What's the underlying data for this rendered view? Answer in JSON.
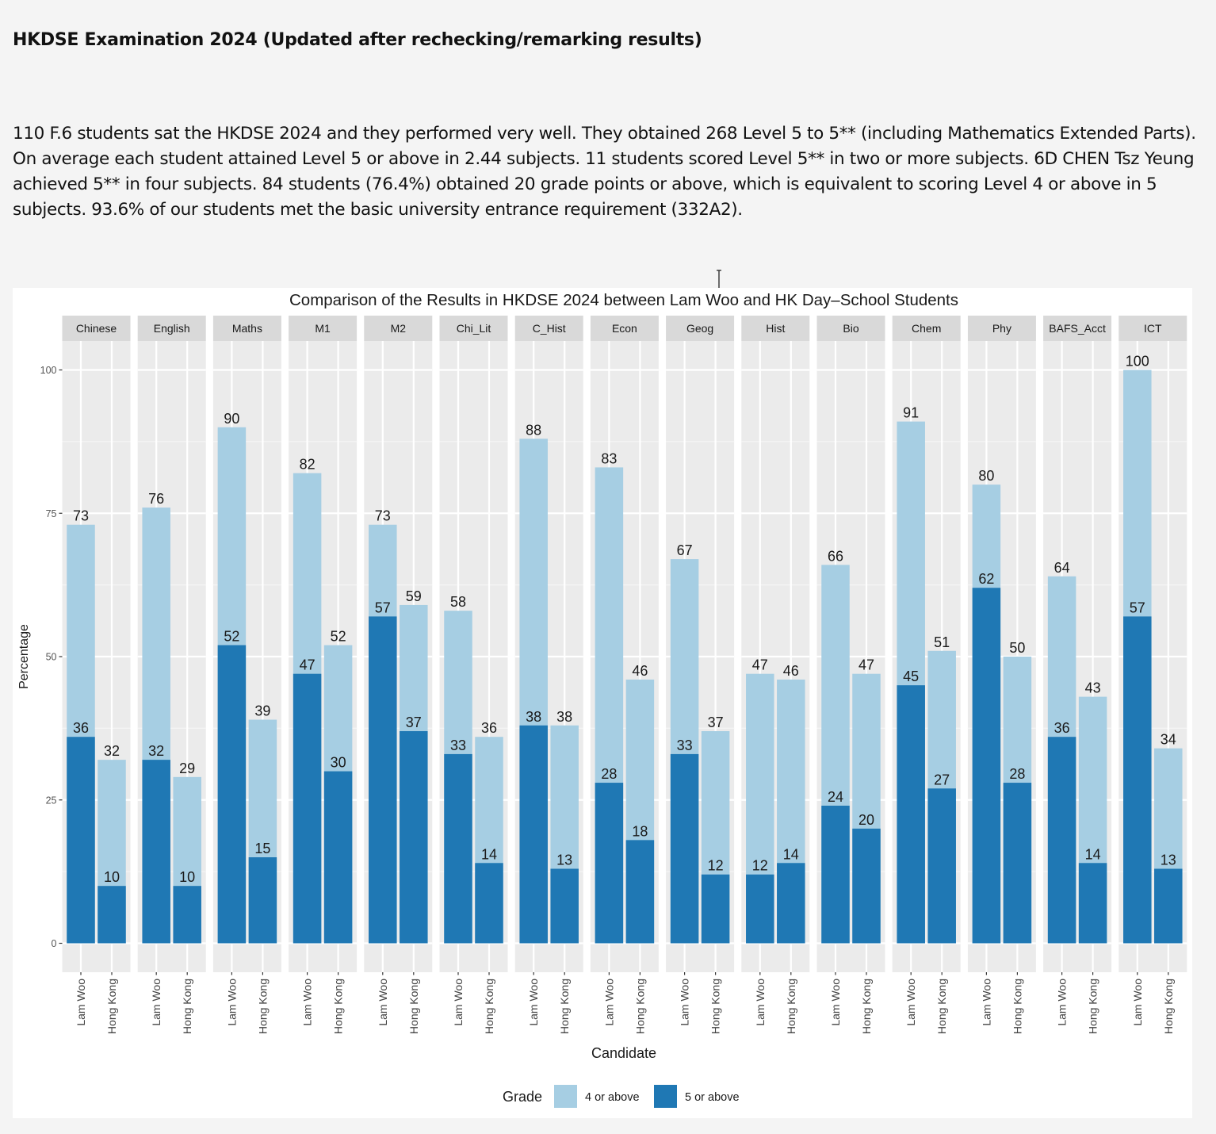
{
  "page": {
    "heading": "HKDSE Examination 2024 (Updated after rechecking/remarking results)",
    "intro": "110 F.6 students sat the HKDSE 2024 and they performed very well. They obtained 268 Level 5 to 5** (including Mathematics Extended Parts). On average each student attained Level 5 or above in 2.44 subjects. 11 students scored Level 5** in two or more subjects. 6D CHEN Tsz Yeung achieved 5** in four subjects. 84 students (76.4%) obtained 20 grade points or above, which is equivalent to scoring Level 4 or above in 5 subjects. 93.6% of our students met the basic university entrance requirement (332A2)."
  },
  "chart_data": {
    "type": "bar",
    "layout": "faceted-grouped-overlaid",
    "title": "Comparison of the Results in HKDSE 2024 between Lam Woo and HK Day–School Students",
    "xlabel": "Candidate",
    "ylabel": "Percentage",
    "ylim": [
      0,
      100
    ],
    "yticks": [
      0,
      25,
      50,
      75,
      100
    ],
    "grid": true,
    "legend": {
      "title": "Grade",
      "position": "bottom",
      "entries": [
        {
          "key": "four_or_above",
          "label": "4 or above",
          "color": "#a6cee3"
        },
        {
          "key": "five_or_above",
          "label": "5 or above",
          "color": "#1f78b4"
        }
      ]
    },
    "candidates": [
      "Lam Woo",
      "Hong Kong"
    ],
    "facets": [
      {
        "subject": "Chinese",
        "values": [
          {
            "four_or_above": 73,
            "five_or_above": 36
          },
          {
            "four_or_above": 32,
            "five_or_above": 10
          }
        ]
      },
      {
        "subject": "English",
        "values": [
          {
            "four_or_above": 76,
            "five_or_above": 32
          },
          {
            "four_or_above": 29,
            "five_or_above": 10
          }
        ]
      },
      {
        "subject": "Maths",
        "values": [
          {
            "four_or_above": 90,
            "five_or_above": 52
          },
          {
            "four_or_above": 39,
            "five_or_above": 15
          }
        ]
      },
      {
        "subject": "M1",
        "values": [
          {
            "four_or_above": 82,
            "five_or_above": 47
          },
          {
            "four_or_above": 52,
            "five_or_above": 30
          }
        ]
      },
      {
        "subject": "M2",
        "values": [
          {
            "four_or_above": 73,
            "five_or_above": 57
          },
          {
            "four_or_above": 59,
            "five_or_above": 37
          }
        ]
      },
      {
        "subject": "Chi_Lit",
        "values": [
          {
            "four_or_above": 58,
            "five_or_above": 33
          },
          {
            "four_or_above": 36,
            "five_or_above": 14
          }
        ]
      },
      {
        "subject": "C_Hist",
        "values": [
          {
            "four_or_above": 88,
            "five_or_above": 38
          },
          {
            "four_or_above": 38,
            "five_or_above": 13
          }
        ]
      },
      {
        "subject": "Econ",
        "values": [
          {
            "four_or_above": 83,
            "five_or_above": 28
          },
          {
            "four_or_above": 46,
            "five_or_above": 18
          }
        ]
      },
      {
        "subject": "Geog",
        "values": [
          {
            "four_or_above": 67,
            "five_or_above": 33
          },
          {
            "four_or_above": 37,
            "five_or_above": 12
          }
        ]
      },
      {
        "subject": "Hist",
        "values": [
          {
            "four_or_above": 47,
            "five_or_above": 12
          },
          {
            "four_or_above": 46,
            "five_or_above": 14
          }
        ]
      },
      {
        "subject": "Bio",
        "values": [
          {
            "four_or_above": 66,
            "five_or_above": 24
          },
          {
            "four_or_above": 47,
            "five_or_above": 20
          }
        ]
      },
      {
        "subject": "Chem",
        "values": [
          {
            "four_or_above": 91,
            "five_or_above": 45
          },
          {
            "four_or_above": 51,
            "five_or_above": 27
          }
        ]
      },
      {
        "subject": "Phy",
        "values": [
          {
            "four_or_above": 80,
            "five_or_above": 62
          },
          {
            "four_or_above": 50,
            "five_or_above": 28
          }
        ]
      },
      {
        "subject": "BAFS_Acct",
        "values": [
          {
            "four_or_above": 64,
            "five_or_above": 36
          },
          {
            "four_or_above": 43,
            "five_or_above": 14
          }
        ]
      },
      {
        "subject": "ICT",
        "values": [
          {
            "four_or_above": 100,
            "five_or_above": 57
          },
          {
            "four_or_above": 34,
            "five_or_above": 13
          }
        ]
      }
    ]
  }
}
